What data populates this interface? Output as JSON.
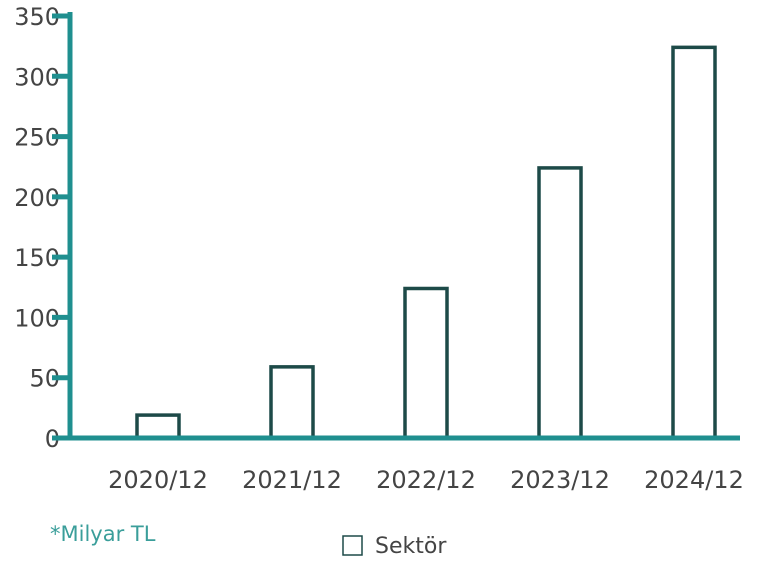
{
  "chart_data": {
    "type": "bar",
    "categories": [
      "2020/12",
      "2021/12",
      "2022/12",
      "2023/12",
      "2024/12"
    ],
    "series": [
      {
        "name": "Sektör",
        "color": "#1d4a48",
        "values": [
          19,
          59,
          124,
          224,
          324
        ]
      }
    ],
    "ylim": [
      0,
      350
    ],
    "yticks": [
      0,
      50,
      100,
      150,
      200,
      250,
      300,
      350
    ],
    "annotation": "*Milyar TL",
    "legend": "bottom",
    "axis_color": "#1f8f8f"
  }
}
